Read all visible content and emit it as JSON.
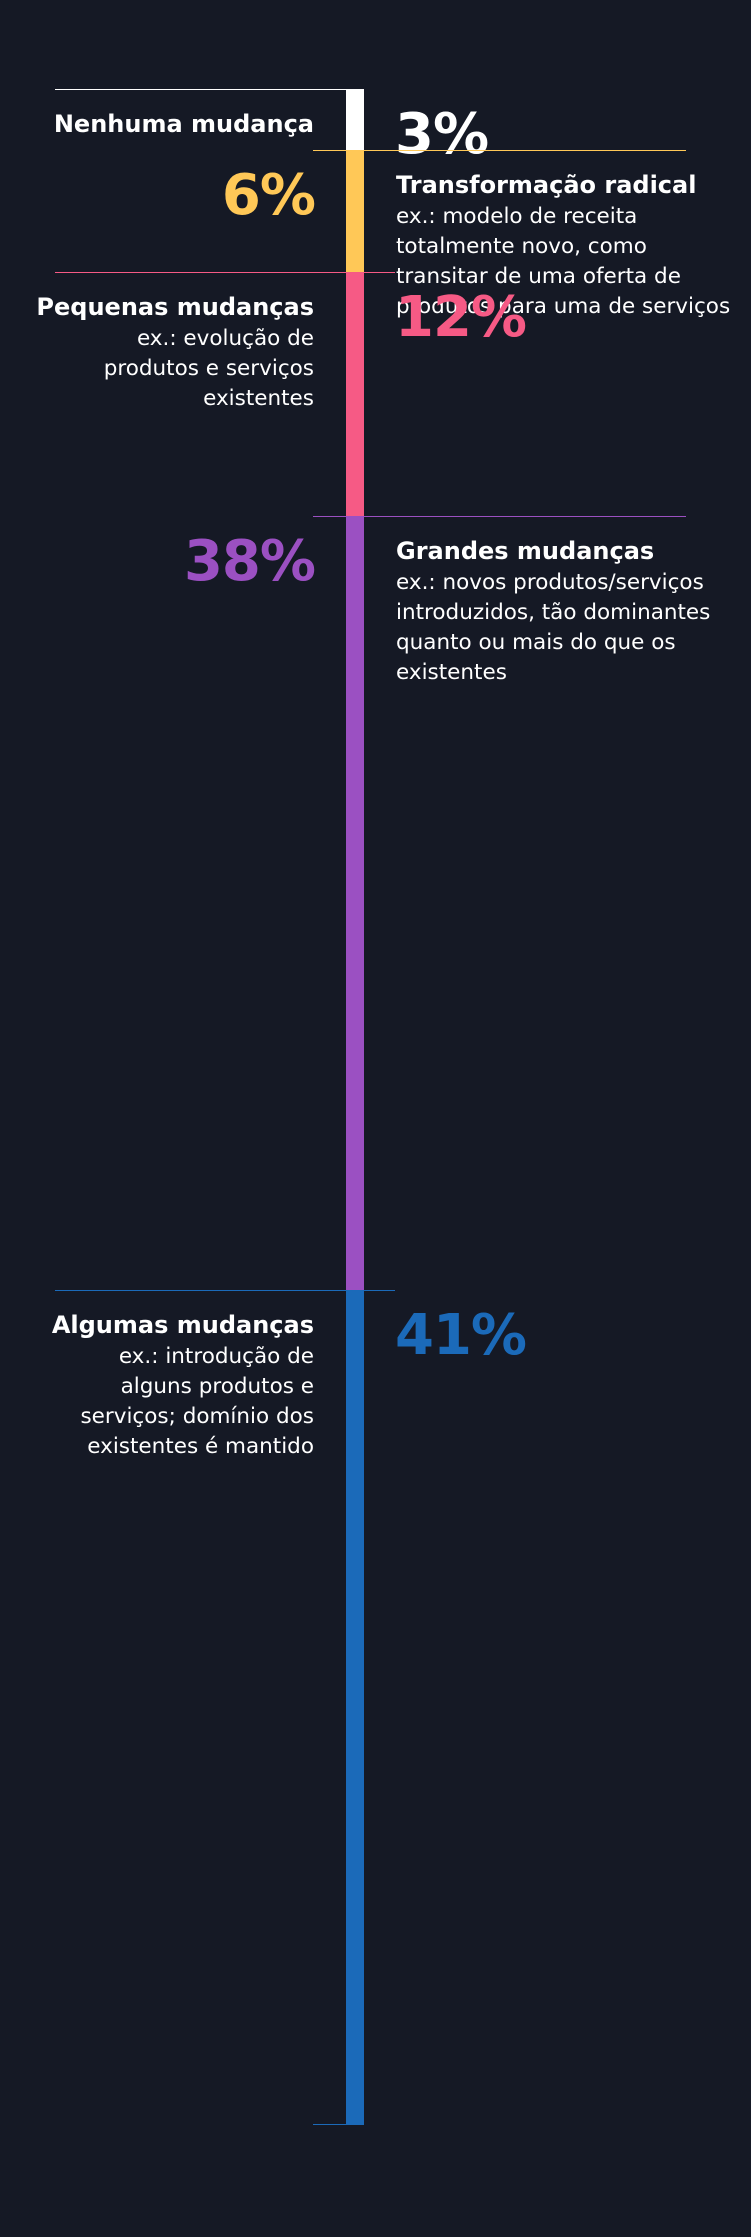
{
  "chart_data": {
    "type": "bar",
    "orientation": "vertical-stacked",
    "unit": "%",
    "segments": [
      {
        "category": "Nenhuma mudança",
        "description": "",
        "value": 3,
        "value_label": "3%",
        "color": "#ffffff",
        "label_side": "left"
      },
      {
        "category": "Transformação radical",
        "description": "ex.: modelo de receita totalmente novo, como transitar de uma oferta de produtos para uma de serviços",
        "value": 6,
        "value_label": "6%",
        "color": "#ffc857",
        "label_side": "right"
      },
      {
        "category": "Pequenas mudanças",
        "description": "ex.: evolução de produtos e serviços existentes",
        "value": 12,
        "value_label": "12%",
        "color": "#f65a85",
        "label_side": "left"
      },
      {
        "category": "Grandes mudanças",
        "description": "ex.: novos produtos/serviços introduzidos, tão dominantes quanto ou mais do que os existentes",
        "value": 38,
        "value_label": "38%",
        "color": "#9b50c2",
        "label_side": "right"
      },
      {
        "category": "Algumas mudanças",
        "description": "ex.: introdução de alguns produtos e serviços; domínio dos existentes é mantido",
        "value": 41,
        "value_label": "41%",
        "color": "#1b6ab9",
        "label_side": "left"
      }
    ]
  }
}
